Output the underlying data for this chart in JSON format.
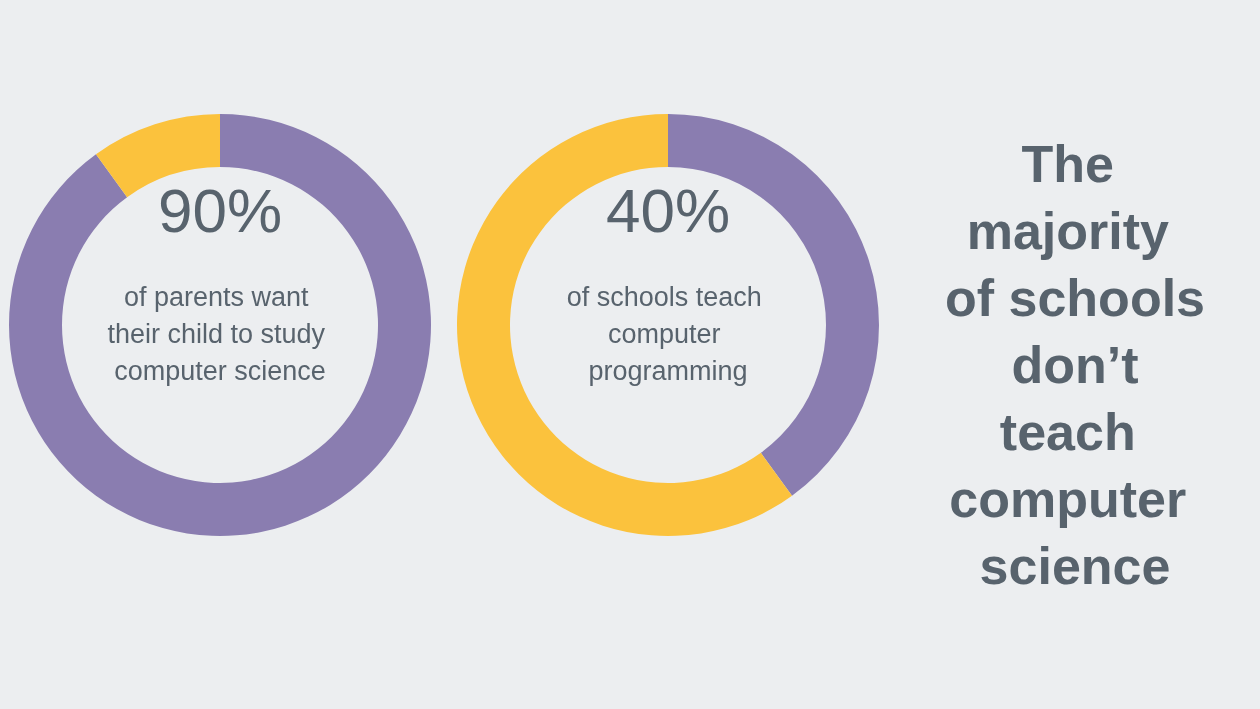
{
  "chart_data": [
    {
      "type": "donut",
      "categories": [
        null,
        null
      ],
      "values": [
        90,
        10
      ],
      "colors": [
        "#8a7db0",
        "#fbc23d"
      ],
      "value_labels": [
        "90%",
        null
      ],
      "annotations": [
        "of parents want their child to study computer science"
      ]
    },
    {
      "type": "donut",
      "categories": [
        null,
        null
      ],
      "values": [
        40,
        60
      ],
      "colors": [
        "#8a7db0",
        "#fbc23d"
      ],
      "value_labels": [
        "40%",
        null
      ],
      "annotations": [
        "of schools teach computer programming"
      ]
    },
    {
      "type": "other",
      "title": "The majority of schools don’t teach computer science"
    }
  ]
}
